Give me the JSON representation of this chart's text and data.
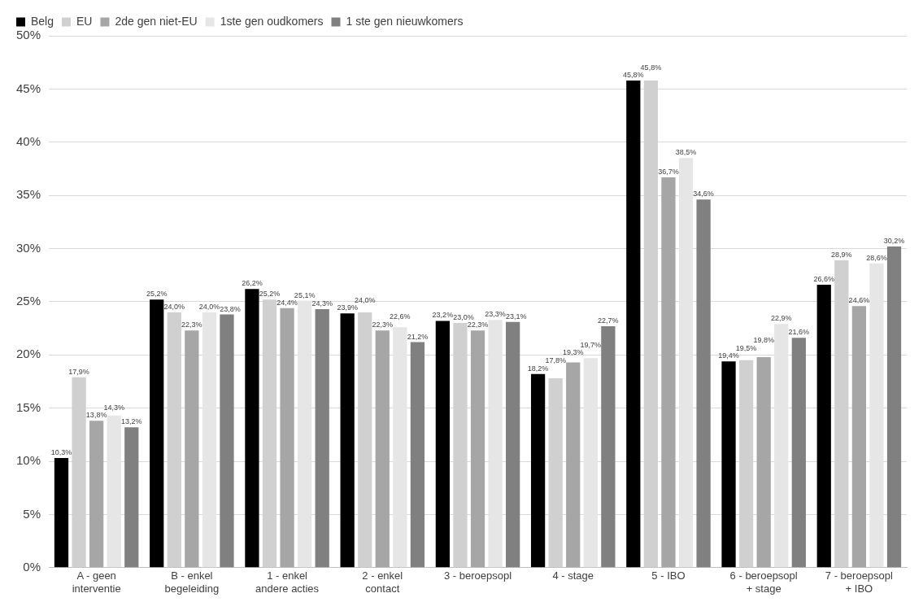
{
  "chart_data": {
    "type": "bar",
    "categories": [
      "A - geen interventie",
      "B - enkel begeleiding",
      "1 - enkel andere acties",
      "2 - enkel contact",
      "3 - beroepsopl",
      "4 - stage",
      "5 - IBO",
      "6 - beroepsopl + stage",
      "7 - beroepsopl + IBO"
    ],
    "series": [
      {
        "name": "Belg",
        "color": "#000000",
        "values": [
          10.3,
          25.2,
          26.2,
          23.9,
          23.2,
          18.2,
          45.8,
          19.4,
          26.6
        ],
        "value_labels": [
          "10,3%",
          "25,2%",
          "26,2%",
          "23,9%",
          "23,2%",
          "18,2%",
          "45,8%",
          "19,4%",
          "26,6%"
        ]
      },
      {
        "name": "EU",
        "color": "#d0d0d0",
        "values": [
          17.9,
          24.0,
          25.2,
          24.0,
          23.0,
          17.8,
          45.8,
          19.5,
          28.9
        ],
        "value_labels": [
          "17,9%",
          "24,0%",
          "25,2%",
          "24,0%",
          "23,0%",
          "17,8%",
          "45,8%",
          "19,5%",
          "28,9%"
        ]
      },
      {
        "name": "2de gen niet-EU",
        "color": "#a6a6a6",
        "values": [
          13.8,
          22.3,
          24.4,
          22.3,
          22.3,
          19.3,
          36.7,
          19.8,
          24.6
        ],
        "value_labels": [
          "13,8%",
          "22,3%",
          "24,4%",
          "22,3%",
          "22,3%",
          "19,3%",
          "36,7%",
          "19,8%",
          "24,6%"
        ]
      },
      {
        "name": "1ste gen oudkomers",
        "color": "#e6e6e6",
        "values": [
          14.3,
          24.0,
          25.1,
          22.6,
          23.3,
          19.7,
          38.5,
          22.9,
          28.6
        ],
        "value_labels": [
          "14,3%",
          "24,0%",
          "25,1%",
          "22,6%",
          "23,3%",
          "19,7%",
          "38,5%",
          "22,9%",
          "28,6%"
        ]
      },
      {
        "name": "1 ste gen nieuwkomers",
        "color": "#808080",
        "values": [
          13.2,
          23.8,
          24.3,
          21.2,
          23.1,
          22.7,
          34.6,
          21.6,
          30.2
        ],
        "value_labels": [
          "13,2%",
          "23,8%",
          "24,3%",
          "21,2%",
          "23,1%",
          "22,7%",
          "34,6%",
          "21,6%",
          "30,2%"
        ]
      }
    ],
    "ylim": [
      0,
      50
    ],
    "yticks": [
      {
        "value": 0,
        "label": "0%"
      },
      {
        "value": 5,
        "label": "5%"
      },
      {
        "value": 10,
        "label": "10%"
      },
      {
        "value": 15,
        "label": "15%"
      },
      {
        "value": 20,
        "label": "20%"
      },
      {
        "value": 25,
        "label": "25%"
      },
      {
        "value": 30,
        "label": "30%"
      },
      {
        "value": 35,
        "label": "35%"
      },
      {
        "value": 40,
        "label": "40%"
      },
      {
        "value": 45,
        "label": "45%"
      },
      {
        "value": 50,
        "label": "50%"
      }
    ],
    "grid": "y",
    "legend": "top left"
  }
}
